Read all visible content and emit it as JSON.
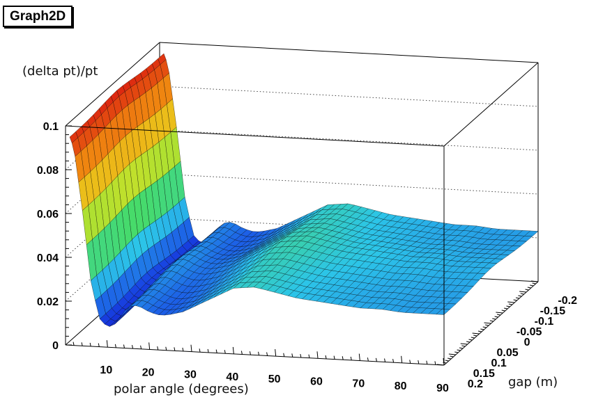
{
  "chart_data": {
    "type": "surface",
    "title": "Graph2D",
    "xlabel": "polar angle (degrees)",
    "ylabel": "gap (m)",
    "zlabel": "(delta pt)/pt",
    "xlim": [
      0,
      90
    ],
    "ylim": [
      -0.2,
      0.2
    ],
    "zlim": [
      0,
      0.1
    ],
    "x_ticks": [
      "10",
      "20",
      "30",
      "40",
      "50",
      "60",
      "70",
      "80",
      "90"
    ],
    "y_ticks": [
      "-0.2",
      "-0.15",
      "-0.1",
      "-0.05",
      "0",
      "0.05",
      "0.1",
      "0.15",
      "0.2"
    ],
    "z_ticks": [
      "0",
      "0.02",
      "0.04",
      "0.06",
      "0.08",
      "0.1"
    ],
    "grid": true,
    "palette": [
      "#1010c8",
      "#1a4fe6",
      "#2cc5e8",
      "#4de04d",
      "#e8e020",
      "#f08a10",
      "#d81010"
    ],
    "profile": {
      "x": [
        1,
        2,
        4,
        6,
        8,
        10,
        12,
        14,
        16,
        18,
        20,
        22,
        24,
        26,
        28,
        30,
        35,
        40,
        45,
        50,
        55,
        60,
        65,
        70,
        75,
        80,
        85,
        90
      ],
      "z": [
        0.095,
        0.09,
        0.062,
        0.03,
        0.013,
        0.009,
        0.011,
        0.017,
        0.02,
        0.019,
        0.017,
        0.016,
        0.016,
        0.017,
        0.018,
        0.02,
        0.025,
        0.03,
        0.031,
        0.029,
        0.027,
        0.026,
        0.025,
        0.024,
        0.024,
        0.023,
        0.023,
        0.023
      ]
    }
  }
}
